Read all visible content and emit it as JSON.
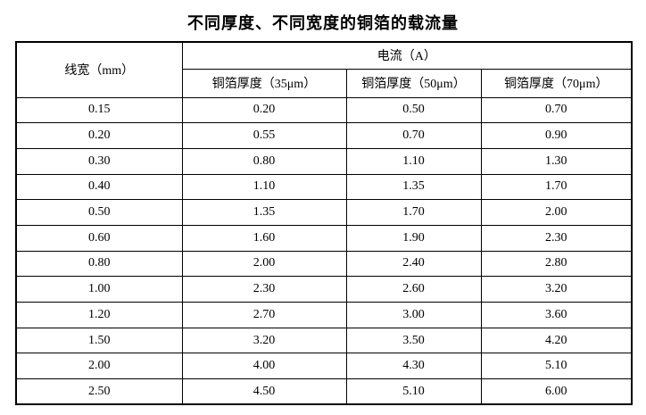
{
  "title": "不同厚度、不同宽度的铜箔的载流量",
  "colors": {
    "text": "#000000",
    "border": "#000000",
    "background": "#ffffff"
  },
  "table": {
    "header": {
      "line_width": "线宽（mm）",
      "current": "电流（A）",
      "thickness_35": "铜箔厚度（35μm）",
      "thickness_50": "铜箔厚度（50μm）",
      "thickness_70": "铜箔厚度（70μm）"
    },
    "rows": [
      [
        "0.15",
        "0.20",
        "0.50",
        "0.70"
      ],
      [
        "0.20",
        "0.55",
        "0.70",
        "0.90"
      ],
      [
        "0.30",
        "0.80",
        "1.10",
        "1.30"
      ],
      [
        "0.40",
        "1.10",
        "1.35",
        "1.70"
      ],
      [
        "0.50",
        "1.35",
        "1.70",
        "2.00"
      ],
      [
        "0.60",
        "1.60",
        "1.90",
        "2.30"
      ],
      [
        "0.80",
        "2.00",
        "2.40",
        "2.80"
      ],
      [
        "1.00",
        "2.30",
        "2.60",
        "3.20"
      ],
      [
        "1.20",
        "2.70",
        "3.00",
        "3.60"
      ],
      [
        "1.50",
        "3.20",
        "3.50",
        "4.20"
      ],
      [
        "2.00",
        "4.00",
        "4.30",
        "5.10"
      ],
      [
        "2.50",
        "4.50",
        "5.10",
        "6.00"
      ]
    ]
  },
  "chart_data": {
    "type": "table",
    "title": "不同厚度、不同宽度的铜箔的载流量",
    "columns": [
      "线宽（mm）",
      "铜箔厚度（35μm）电流（A）",
      "铜箔厚度（50μm）电流（A）",
      "铜箔厚度（70μm）电流（A）"
    ],
    "line_width_mm": [
      0.15,
      0.2,
      0.3,
      0.4,
      0.5,
      0.6,
      0.8,
      1.0,
      1.2,
      1.5,
      2.0,
      2.5
    ],
    "series": [
      {
        "name": "铜箔厚度（35μm）",
        "values": [
          0.2,
          0.55,
          0.8,
          1.1,
          1.35,
          1.6,
          2.0,
          2.3,
          2.7,
          3.2,
          4.0,
          4.5
        ]
      },
      {
        "name": "铜箔厚度（50μm）",
        "values": [
          0.5,
          0.7,
          1.1,
          1.35,
          1.7,
          1.9,
          2.4,
          2.6,
          3.0,
          3.5,
          4.3,
          5.1
        ]
      },
      {
        "name": "铜箔厚度（70μm）",
        "values": [
          0.7,
          0.9,
          1.3,
          1.7,
          2.0,
          2.3,
          2.8,
          3.2,
          3.6,
          4.2,
          5.1,
          6.0
        ]
      }
    ]
  }
}
